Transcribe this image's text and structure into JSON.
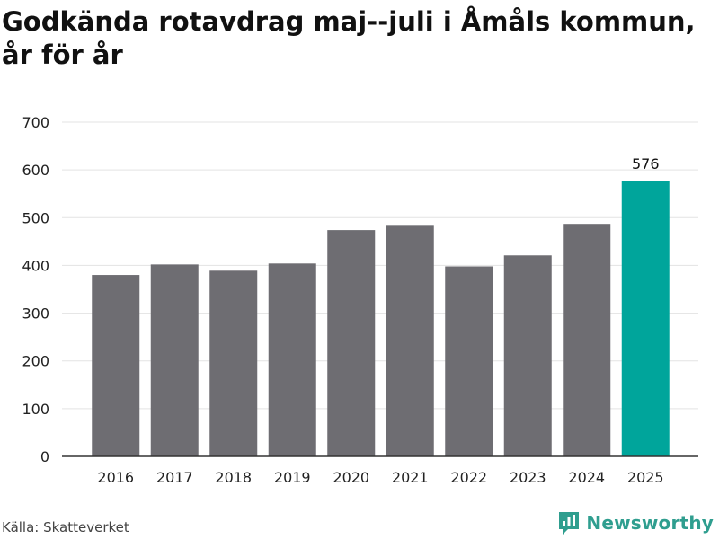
{
  "title": "Godkända rotavdrag maj--juli i Åmåls kommun, år för år",
  "source": "Källa: Skatteverket",
  "brand": {
    "name": "Newsworthy",
    "icon": "newsworthy-logo-icon"
  },
  "colors": {
    "bar": "#6e6d72",
    "highlight": "#00a59b",
    "grid": "#e3e3e3",
    "brand": "#2f9e8f"
  },
  "chart_data": {
    "type": "bar",
    "title": "Godkända rotavdrag maj--juli i Åmåls kommun, år för år",
    "xlabel": "",
    "ylabel": "",
    "categories": [
      "2016",
      "2017",
      "2018",
      "2019",
      "2020",
      "2021",
      "2022",
      "2023",
      "2024",
      "2025"
    ],
    "values": [
      380,
      402,
      389,
      404,
      474,
      483,
      398,
      421,
      487,
      576
    ],
    "highlight_index": 9,
    "data_labels": [
      {
        "index": 9,
        "text": "576"
      }
    ],
    "ylim": [
      0,
      700
    ],
    "yticks": [
      0,
      100,
      200,
      300,
      400,
      500,
      600,
      700
    ],
    "grid": true,
    "legend": "none"
  }
}
